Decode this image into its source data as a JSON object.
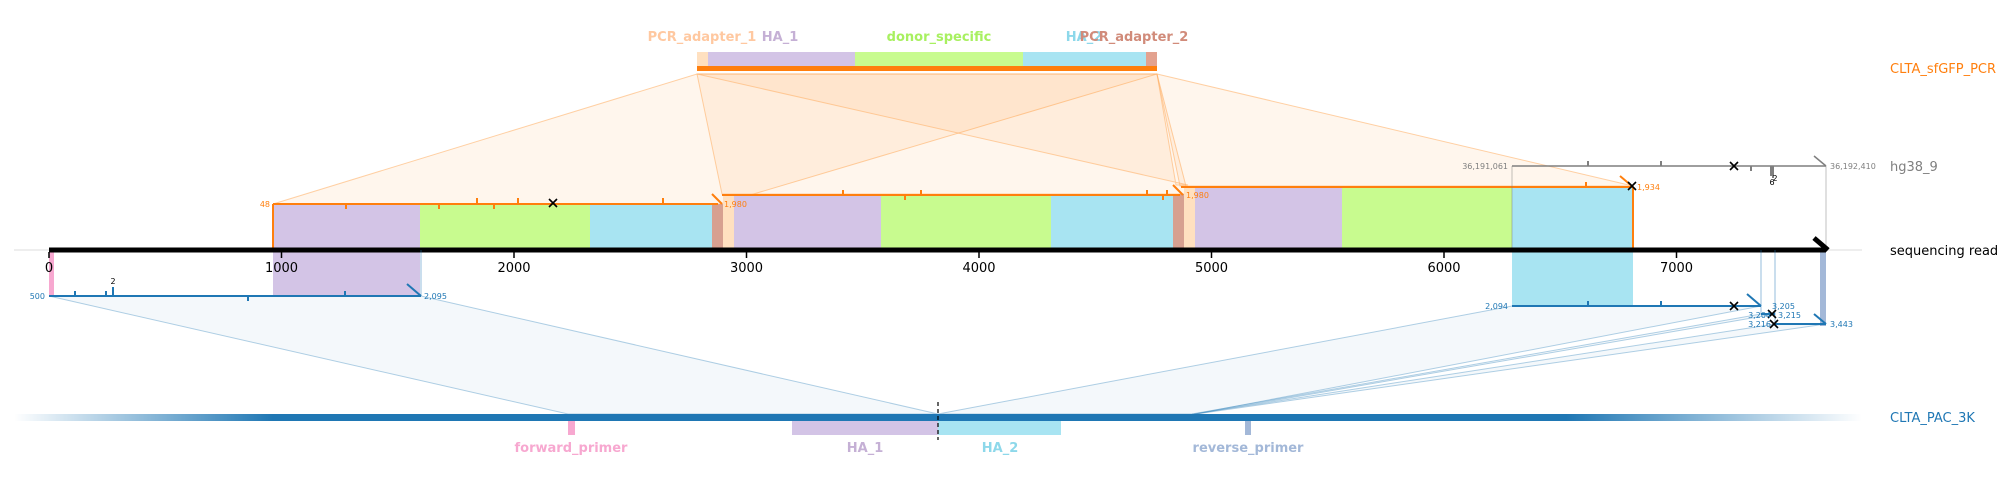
{
  "tracks": {
    "pcr": {
      "label": "CLTA_sfGFP_PCR",
      "color": "#ff7f0e"
    },
    "genome": {
      "label": "hg38_9",
      "color": "#7f7f7f"
    },
    "read": {
      "label": "sequencing read",
      "color": "#000000"
    },
    "donor": {
      "label": "CLTA_PAC_3K",
      "color": "#1f77b4"
    }
  },
  "features": {
    "pcr_adapter_1": {
      "label": "PCR_adapter_1",
      "color": "#ffd0a0"
    },
    "ha_1": {
      "label": "HA_1",
      "color": "#c5b0d5"
    },
    "donor_specific": {
      "label": "donor_specific",
      "color": "#bcf87a"
    },
    "ha_2": {
      "label": "HA_2",
      "color": "#92dbee"
    },
    "pcr_adapter_2": {
      "label": "PCR_adapter_2",
      "color": "#d18b7a"
    },
    "forward_primer": {
      "label": "forward_primer",
      "color": "#f7a8d0"
    },
    "reverse_primer": {
      "label": "reverse_primer",
      "color": "#a3b8d8"
    }
  },
  "read_axis": {
    "ticks": [
      "0",
      "1000",
      "2000",
      "3000",
      "4000",
      "5000",
      "6000",
      "7000"
    ]
  },
  "alignment_labels": {
    "pcr_1_start": "48",
    "pcr_1_end": "1,980",
    "pcr_2_end": "1,980",
    "pcr_3_end": "1,980",
    "pcr_4_end": "1,934",
    "genome_start": "36,191,061",
    "genome_end": "36,192,410",
    "genome_count": "6",
    "genome_count2": "2",
    "donor_1_start": "500",
    "donor_1_end": "2,095",
    "donor_1_count": "2",
    "donor_2_start": "2,094",
    "donor_2_end": "3,205",
    "donor_3_a": "3,204",
    "donor_3_b": "3,215",
    "donor_4_a": "3,216",
    "donor_4_b": "3,443"
  }
}
